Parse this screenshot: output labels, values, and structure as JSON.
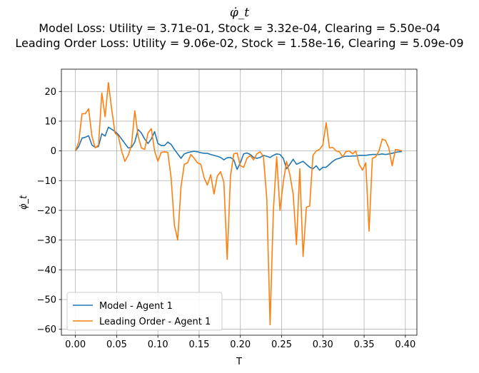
{
  "chart_data": {
    "type": "line",
    "title": "φ̇_t",
    "subtitle_lines": [
      "Model Loss: Utility = 3.71e-01, Stock = 3.32e-04, Clearing = 5.50e-04",
      "Leading Order Loss: Utility = 9.06e-02, Stock = 1.58e-16, Clearing = 5.09e-09"
    ],
    "xlabel": "T",
    "ylabel": "φ̇_t",
    "xlim": [
      -0.017,
      0.414
    ],
    "ylim": [
      -62,
      27.5
    ],
    "xticks": [
      0.0,
      0.05,
      0.1,
      0.15,
      0.2,
      0.25,
      0.3,
      0.35,
      0.4
    ],
    "xtick_labels": [
      "0.00",
      "0.05",
      "0.10",
      "0.15",
      "0.20",
      "0.25",
      "0.30",
      "0.35",
      "0.40"
    ],
    "yticks": [
      20,
      10,
      0,
      -10,
      -20,
      -30,
      -40,
      -50,
      -60
    ],
    "ytick_labels": [
      "20",
      "10",
      "0",
      "−10",
      "−20",
      "−30",
      "−40",
      "−50",
      "−60"
    ],
    "grid": true,
    "legend_position": "lower-left",
    "series": [
      {
        "name": "Model - Agent 1",
        "color": "#1f77b4",
        "x": [
          0.0,
          0.004,
          0.008,
          0.012,
          0.016,
          0.02,
          0.024,
          0.028,
          0.032,
          0.036,
          0.04,
          0.044,
          0.048,
          0.052,
          0.056,
          0.06,
          0.064,
          0.068,
          0.072,
          0.076,
          0.08,
          0.084,
          0.088,
          0.092,
          0.096,
          0.1,
          0.104,
          0.108,
          0.112,
          0.116,
          0.12,
          0.124,
          0.128,
          0.132,
          0.136,
          0.14,
          0.144,
          0.148,
          0.152,
          0.156,
          0.16,
          0.164,
          0.168,
          0.172,
          0.176,
          0.18,
          0.184,
          0.188,
          0.192,
          0.196,
          0.2,
          0.204,
          0.208,
          0.212,
          0.216,
          0.22,
          0.224,
          0.228,
          0.232,
          0.236,
          0.24,
          0.244,
          0.248,
          0.252,
          0.256,
          0.26,
          0.264,
          0.268,
          0.272,
          0.276,
          0.28,
          0.284,
          0.288,
          0.292,
          0.296,
          0.3,
          0.304,
          0.308,
          0.312,
          0.316,
          0.32,
          0.324,
          0.328,
          0.332,
          0.336,
          0.34,
          0.344,
          0.348,
          0.352,
          0.356,
          0.36,
          0.364,
          0.368,
          0.372,
          0.376,
          0.38,
          0.384,
          0.388,
          0.392,
          0.396
        ],
        "y": [
          0.0,
          1.5,
          4.3,
          4.6,
          5.1,
          2.0,
          1.2,
          1.5,
          5.8,
          5.0,
          8.0,
          7.3,
          6.5,
          5.5,
          4.0,
          2.5,
          1.0,
          1.2,
          3.0,
          7.2,
          6.0,
          4.0,
          2.5,
          4.0,
          6.5,
          2.5,
          1.8,
          1.8,
          3.0,
          2.2,
          0.5,
          -1.0,
          -2.5,
          -1.0,
          -0.6,
          -0.3,
          -0.1,
          -0.3,
          -0.6,
          -0.8,
          -0.8,
          -1.2,
          -1.5,
          -1.8,
          -2.2,
          -3.0,
          -2.3,
          -2.2,
          -3.0,
          -6.2,
          -4.0,
          -1.0,
          -0.7,
          -1.2,
          -2.2,
          -2.5,
          -2.2,
          -1.5,
          -1.8,
          -2.2,
          -1.5,
          -1.0,
          -1.2,
          -2.5,
          -6.0,
          -4.5,
          -2.8,
          -4.5,
          -4.0,
          -3.5,
          -4.5,
          -5.5,
          -6.0,
          -5.0,
          -6.5,
          -5.5,
          -5.5,
          -4.5,
          -3.5,
          -2.8,
          -2.5,
          -2.0,
          -1.8,
          -1.8,
          -1.7,
          -1.7,
          -1.5,
          -1.5,
          -1.5,
          -1.3,
          -1.2,
          -1.2,
          -1.2,
          -1.0,
          -1.2,
          -1.0,
          -0.8,
          -0.5,
          -0.3,
          -0.2
        ]
      },
      {
        "name": "Leading Order - Agent 1",
        "color": "#ff7f0e",
        "x": [
          0.0,
          0.004,
          0.008,
          0.012,
          0.016,
          0.02,
          0.024,
          0.028,
          0.032,
          0.036,
          0.04,
          0.044,
          0.048,
          0.052,
          0.056,
          0.06,
          0.064,
          0.068,
          0.072,
          0.076,
          0.08,
          0.084,
          0.088,
          0.092,
          0.096,
          0.1,
          0.104,
          0.108,
          0.112,
          0.116,
          0.12,
          0.124,
          0.128,
          0.132,
          0.136,
          0.14,
          0.144,
          0.148,
          0.152,
          0.156,
          0.16,
          0.164,
          0.168,
          0.172,
          0.176,
          0.18,
          0.184,
          0.188,
          0.192,
          0.196,
          0.2,
          0.204,
          0.208,
          0.212,
          0.216,
          0.22,
          0.224,
          0.228,
          0.232,
          0.236,
          0.24,
          0.244,
          0.248,
          0.252,
          0.256,
          0.26,
          0.264,
          0.268,
          0.272,
          0.276,
          0.28,
          0.284,
          0.288,
          0.292,
          0.296,
          0.3,
          0.304,
          0.308,
          0.312,
          0.316,
          0.32,
          0.324,
          0.328,
          0.332,
          0.336,
          0.34,
          0.344,
          0.348,
          0.352,
          0.356,
          0.36,
          0.364,
          0.368,
          0.372,
          0.376,
          0.38,
          0.384,
          0.388,
          0.392,
          0.396
        ],
        "y": [
          0.0,
          3.0,
          12.5,
          12.5,
          14.2,
          5.0,
          1.0,
          2.0,
          19.5,
          11.5,
          23.0,
          14.0,
          6.0,
          5.0,
          0.0,
          -3.5,
          -1.5,
          2.0,
          13.5,
          5.0,
          1.0,
          0.5,
          6.0,
          7.5,
          0.0,
          -3.5,
          -0.5,
          -0.3,
          -0.5,
          -9.0,
          -25.0,
          -30.0,
          -12.0,
          -4.5,
          -4.0,
          -1.2,
          -2.5,
          -4.0,
          -4.5,
          -9.0,
          -11.5,
          -8.0,
          -14.5,
          -8.5,
          -7.0,
          -10.5,
          -36.5,
          -8.5,
          -1.0,
          -0.7,
          -5.0,
          -5.5,
          -2.5,
          -1.5,
          -3.0,
          -1.0,
          -0.3,
          -2.0,
          -16.0,
          -58.5,
          -20.0,
          -2.0,
          -20.0,
          -10.5,
          -3.5,
          -8.0,
          -14.5,
          -31.5,
          -6.0,
          -35.5,
          -19.0,
          -18.5,
          -1.5,
          0.0,
          0.5,
          2.0,
          9.5,
          1.0,
          1.2,
          0.0,
          -0.3,
          -2.0,
          -0.2,
          0.0,
          -1.0,
          0.0,
          -4.5,
          -6.5,
          -4.0,
          -27.0,
          -2.5,
          -2.0,
          0.0,
          4.0,
          3.5,
          1.0,
          -5.0,
          0.5,
          0.3,
          0.0
        ]
      }
    ]
  }
}
